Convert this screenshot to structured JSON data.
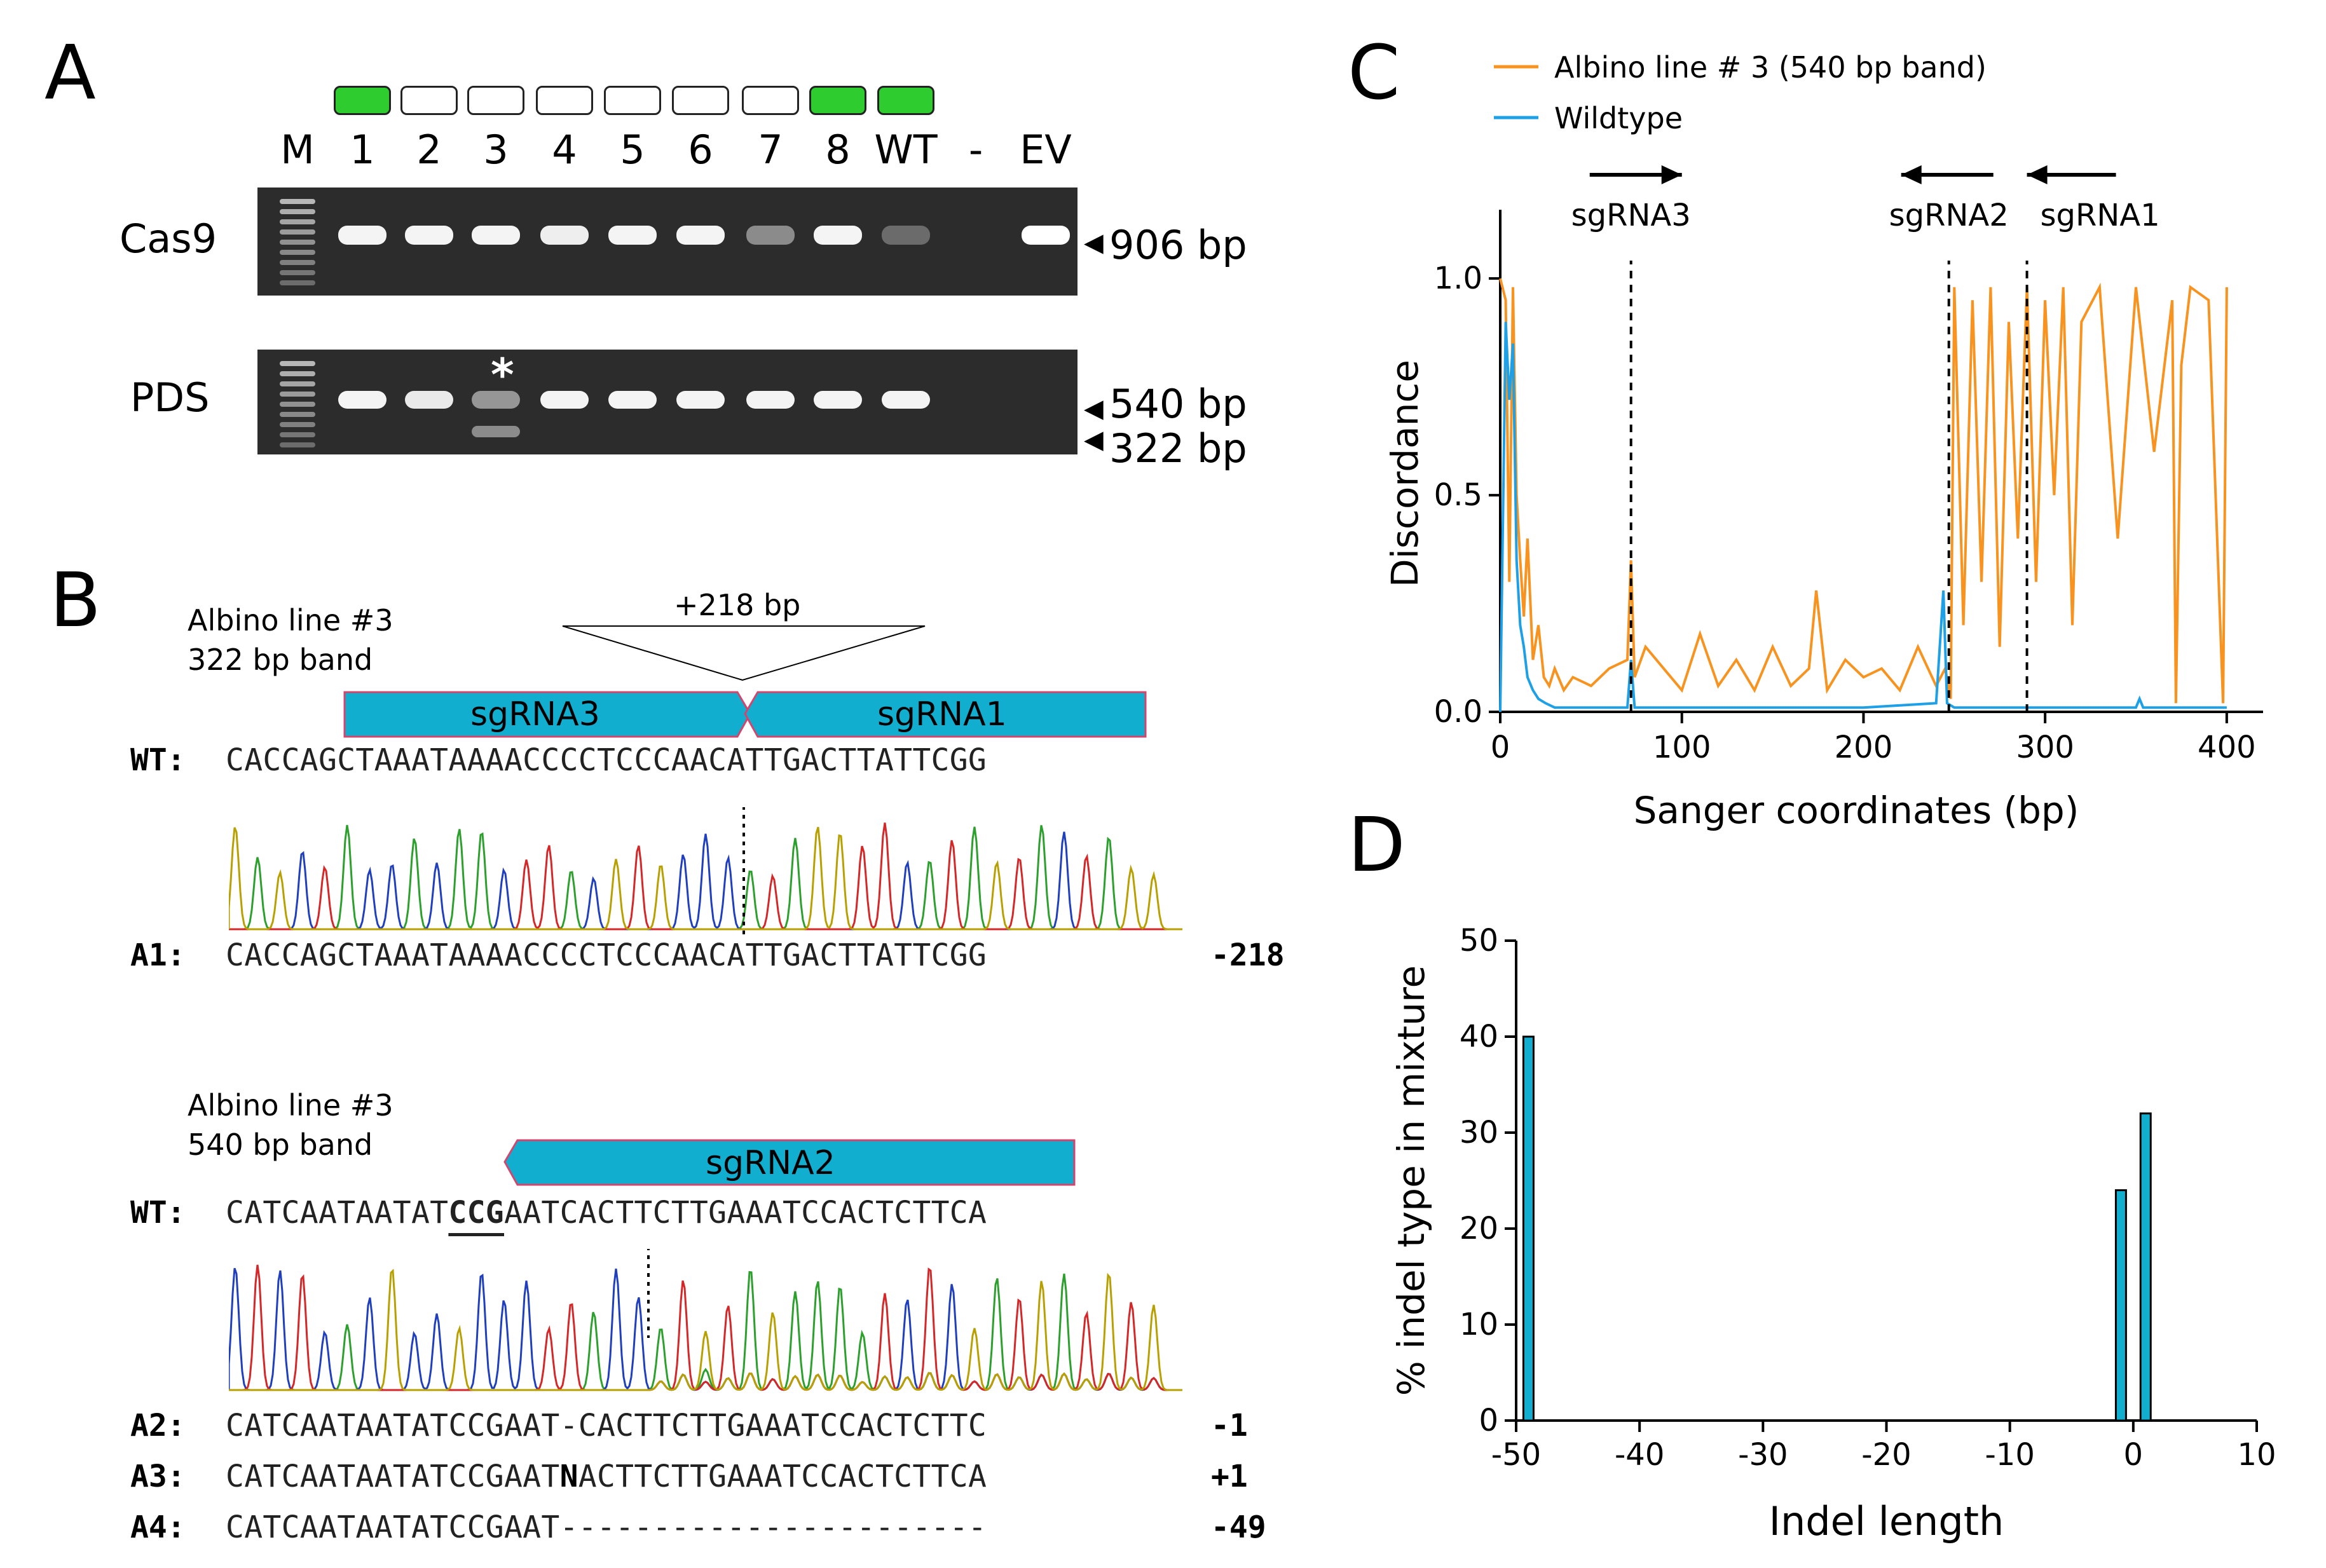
{
  "panels": {
    "a": "A",
    "b": "B",
    "c": "C",
    "d": "D"
  },
  "gel": {
    "lanes": [
      "M",
      "1",
      "2",
      "3",
      "4",
      "5",
      "6",
      "7",
      "8",
      "WT",
      "-",
      "EV"
    ],
    "lane_status": [
      null,
      "green",
      "empty",
      "empty",
      "empty",
      "empty",
      "empty",
      "empty",
      "green",
      "green",
      null,
      null
    ],
    "row1_label": "Cas9",
    "row2_label": "PDS",
    "size_906": "906 bp",
    "size_540": "540 bp",
    "size_322": "322 bp",
    "asterisk": "*",
    "cas9_intensity": [
      0,
      0.95,
      0.95,
      0.95,
      0.92,
      0.95,
      0.95,
      0.45,
      0.95,
      0.3,
      0,
      1
    ],
    "pds_intensity": [
      0,
      0.95,
      0.9,
      0.5,
      0.95,
      0.95,
      0.95,
      0.95,
      0.95,
      0.95,
      0,
      0
    ]
  },
  "b_top": {
    "caption1": "Albino line #3",
    "caption2": "322 bp band",
    "insert": "+218 bp",
    "guide_a": "sgRNA3",
    "guide_b": "sgRNA1",
    "wt_label": "WT:",
    "wt_seq": "CACCAGCTAAATAAAACCCCTCCCAACATTGACTTATTCGG",
    "a1_label": "A1:",
    "a1_seq": "CACCAGCTAAATAAAACCCCTCCCAACATTGACTTATTCGG",
    "a1_indel": "-218"
  },
  "b_bot": {
    "caption1": "Albino line #3",
    "caption2": "540 bp band",
    "guide": "sgRNA2",
    "wt_label": "WT:",
    "wt_pre": "CATCAATAATAT",
    "wt_pam": "CCG",
    "wt_post": "AATCACTTCTTGAAATCCACTCTTCA",
    "a2_label": "A2:",
    "a2_seq": "CATCAATAATATCCGAAT-CACTTCTTGAAATCCACTCTTC",
    "a2_indel": "-1",
    "a3_label": "A3:",
    "a3_pre": "CATCAATAATATCCGAAT",
    "a3_n": "N",
    "a3_post": "ACTTCTTGAAATCCACTCTTCA",
    "a3_indel": "+1",
    "a4_label": "A4:",
    "a4_seq": "CATCAATAATATCCGAAT-----------------------",
    "a4_indel": "-49"
  },
  "colors": {
    "orange": "#f7931e",
    "blue": "#1ea0e6",
    "green": "#2ecc2e",
    "guide": "#11aecf"
  },
  "chart_data": [
    {
      "type": "line",
      "title": "",
      "xlabel": "Sanger coordinates (bp)",
      "ylabel": "Discordance",
      "xlim": [
        0,
        420
      ],
      "ylim": [
        0,
        1.1
      ],
      "xticks": [
        0,
        100,
        200,
        300,
        400
      ],
      "yticks": [
        0.0,
        0.5,
        1.0
      ],
      "ytick_labels": [
        "0.0",
        "0.5",
        "1.0"
      ],
      "legend": [
        "Albino line # 3 (540 bp band)",
        "Wildtype"
      ],
      "legend_position": "top",
      "annotations": [
        {
          "label": "sgRNA3",
          "x": 72,
          "dir": "right"
        },
        {
          "label": "sgRNA2",
          "x": 247,
          "dir": "left"
        },
        {
          "label": "sgRNA1",
          "x": 290,
          "dir": "left"
        }
      ],
      "series": [
        {
          "name": "Albino line # 3 (540 bp band)",
          "x": [
            0,
            3,
            5,
            7,
            9,
            11,
            13,
            15,
            18,
            21,
            24,
            27,
            30,
            35,
            40,
            50,
            60,
            70,
            72,
            74,
            80,
            90,
            100,
            110,
            120,
            130,
            140,
            150,
            160,
            170,
            174,
            180,
            190,
            200,
            210,
            220,
            230,
            240,
            245,
            248,
            250,
            255,
            260,
            265,
            270,
            275,
            280,
            285,
            290,
            295,
            300,
            305,
            310,
            315,
            320,
            330,
            340,
            350,
            360,
            370,
            372,
            375,
            380,
            390,
            398,
            400
          ],
          "y": [
            1.0,
            0.95,
            0.3,
            0.98,
            0.5,
            0.35,
            0.22,
            0.4,
            0.12,
            0.2,
            0.08,
            0.06,
            0.1,
            0.05,
            0.08,
            0.06,
            0.1,
            0.12,
            0.35,
            0.08,
            0.15,
            0.1,
            0.05,
            0.18,
            0.06,
            0.12,
            0.05,
            0.15,
            0.06,
            0.1,
            0.28,
            0.05,
            0.12,
            0.08,
            0.1,
            0.05,
            0.15,
            0.06,
            0.1,
            0.03,
            0.98,
            0.2,
            0.95,
            0.3,
            0.98,
            0.15,
            0.9,
            0.4,
            0.98,
            0.3,
            0.95,
            0.5,
            0.98,
            0.2,
            0.9,
            0.98,
            0.4,
            0.98,
            0.6,
            0.95,
            0.02,
            0.8,
            0.98,
            0.95,
            0.02,
            0.98
          ]
        },
        {
          "name": "Wildtype",
          "x": [
            0,
            3,
            5,
            7,
            9,
            11,
            13,
            15,
            18,
            21,
            25,
            30,
            40,
            60,
            70,
            72,
            74,
            80,
            100,
            150,
            200,
            240,
            244,
            246,
            250,
            300,
            350,
            352,
            354,
            400
          ],
          "y": [
            0.0,
            0.9,
            0.72,
            0.85,
            0.35,
            0.2,
            0.15,
            0.08,
            0.05,
            0.03,
            0.02,
            0.01,
            0.01,
            0.01,
            0.01,
            0.12,
            0.01,
            0.01,
            0.01,
            0.01,
            0.01,
            0.02,
            0.28,
            0.02,
            0.01,
            0.01,
            0.01,
            0.03,
            0.01,
            0.01
          ]
        }
      ]
    },
    {
      "type": "bar",
      "title": "",
      "xlabel": "Indel length",
      "ylabel": "% indel type in mixture",
      "xlim": [
        -50,
        10
      ],
      "ylim": [
        0,
        50
      ],
      "xticks": [
        -50,
        -40,
        -30,
        -20,
        -10,
        0,
        10
      ],
      "yticks": [
        0,
        10,
        20,
        30,
        40,
        50
      ],
      "x": [
        -49,
        -1,
        1
      ],
      "values": [
        40,
        24,
        32
      ]
    }
  ]
}
